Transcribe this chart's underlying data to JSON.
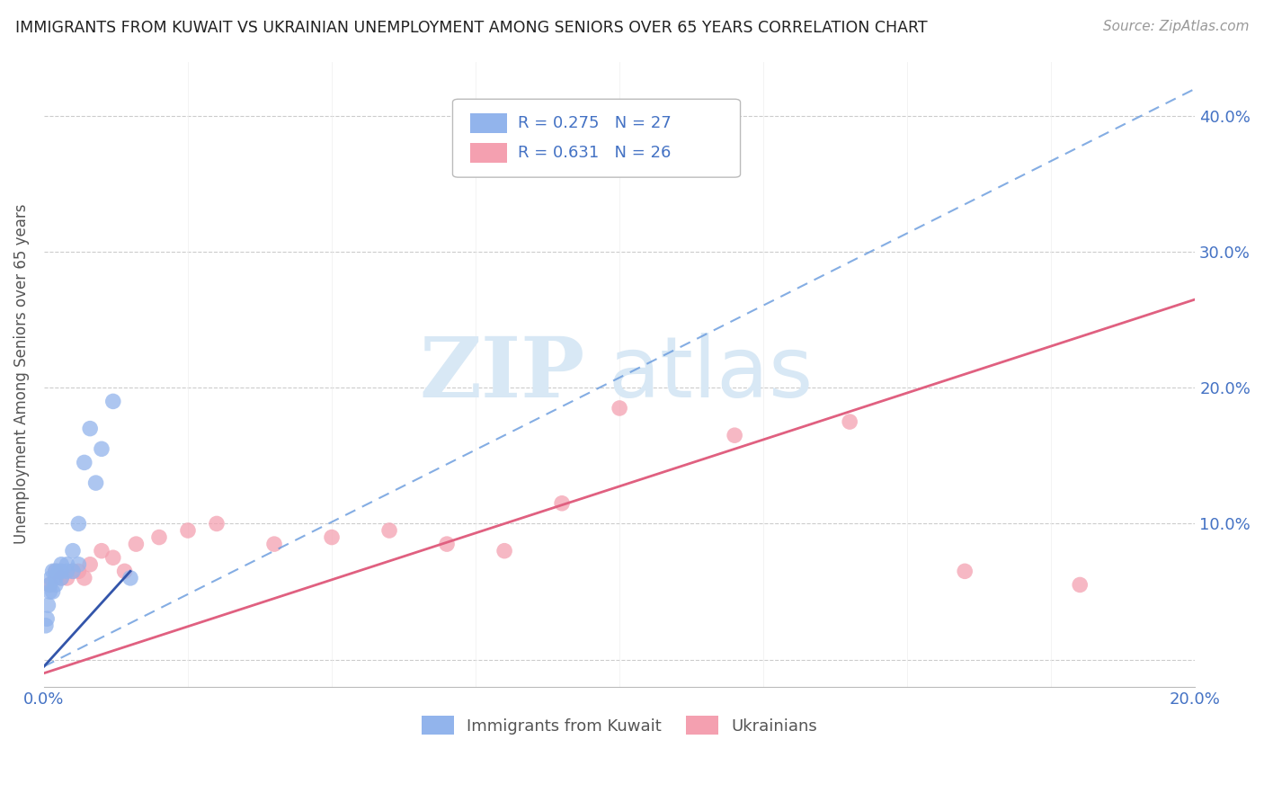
{
  "title": "IMMIGRANTS FROM KUWAIT VS UKRAINIAN UNEMPLOYMENT AMONG SENIORS OVER 65 YEARS CORRELATION CHART",
  "source": "Source: ZipAtlas.com",
  "ylabel": "Unemployment Among Seniors over 65 years",
  "xlim": [
    0.0,
    0.2
  ],
  "ylim": [
    -0.02,
    0.44
  ],
  "color_kuwait": "#92B4EC",
  "color_ukraine": "#F4A0B0",
  "color_kuwait_line": "#6699DD",
  "color_ukraine_line": "#E06080",
  "watermark_zip": "ZIP",
  "watermark_atlas": "atlas",
  "kuwait_x": [
    0.0003,
    0.0005,
    0.0007,
    0.001,
    0.001,
    0.0012,
    0.0015,
    0.0015,
    0.002,
    0.002,
    0.002,
    0.0025,
    0.003,
    0.003,
    0.003,
    0.004,
    0.004,
    0.005,
    0.005,
    0.006,
    0.006,
    0.007,
    0.008,
    0.009,
    0.01,
    0.012,
    0.015
  ],
  "kuwait_y": [
    0.025,
    0.03,
    0.04,
    0.05,
    0.055,
    0.06,
    0.05,
    0.065,
    0.055,
    0.06,
    0.065,
    0.065,
    0.06,
    0.065,
    0.07,
    0.065,
    0.07,
    0.065,
    0.08,
    0.07,
    0.1,
    0.145,
    0.17,
    0.13,
    0.155,
    0.19,
    0.06
  ],
  "ukraine_x": [
    0.001,
    0.002,
    0.003,
    0.004,
    0.005,
    0.006,
    0.007,
    0.008,
    0.01,
    0.012,
    0.014,
    0.016,
    0.02,
    0.025,
    0.03,
    0.04,
    0.05,
    0.06,
    0.07,
    0.08,
    0.09,
    0.1,
    0.12,
    0.14,
    0.16,
    0.18
  ],
  "ukraine_y": [
    0.055,
    0.065,
    0.06,
    0.06,
    0.065,
    0.065,
    0.06,
    0.07,
    0.08,
    0.075,
    0.065,
    0.085,
    0.09,
    0.095,
    0.1,
    0.085,
    0.09,
    0.095,
    0.085,
    0.08,
    0.115,
    0.185,
    0.165,
    0.175,
    0.065,
    0.055
  ],
  "kuwait_line_x0": 0.0,
  "kuwait_line_y0": -0.005,
  "kuwait_line_x1": 0.2,
  "kuwait_line_y1": 0.42,
  "ukraine_line_x0": 0.0,
  "ukraine_line_y0": -0.01,
  "ukraine_line_x1": 0.2,
  "ukraine_line_y1": 0.265
}
